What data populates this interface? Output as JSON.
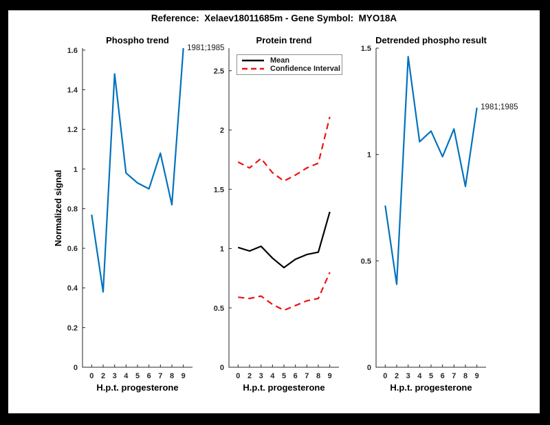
{
  "figure": {
    "title": "Reference:  Xelaev18011685m - Gene Symbol:  MYO18A"
  },
  "colors": {
    "blue": "#0072BD",
    "red": "#EE1111",
    "black": "#000000",
    "axis": "#262626",
    "background": "#000000",
    "canvas": "#FFFFFF"
  },
  "legend": {
    "position": "top-left",
    "items": [
      {
        "label": "Mean",
        "style": "solid",
        "color_key": "black"
      },
      {
        "label": "Confidence Interval",
        "style": "dashed",
        "color_key": "red"
      }
    ]
  },
  "chart_data": [
    {
      "type": "line",
      "title": "Phospho trend",
      "xlabel": "H.p.t. progesterone",
      "ylabel": "Normalized signal",
      "categories": [
        "0",
        "2",
        "3",
        "4",
        "5",
        "6",
        "7",
        "8",
        "9"
      ],
      "ylim": [
        0,
        1.61
      ],
      "ytick_values": [
        0,
        0.2,
        0.4,
        0.6,
        0.8,
        1,
        1.2,
        1.4,
        1.6
      ],
      "ytick_labels": [
        "0",
        "0.2",
        "0.4",
        "0.6",
        "0.8",
        "1",
        "1.2",
        "1.4",
        "1.6"
      ],
      "grid": false,
      "series": [
        {
          "name": "phospho-trend",
          "color_key": "blue",
          "style": "solid",
          "values": [
            0.77,
            0.38,
            1.48,
            0.98,
            0.93,
            0.9,
            1.08,
            0.82,
            1.61
          ]
        }
      ],
      "annotation": {
        "text": "1981;1985",
        "series": 0,
        "point": 8
      }
    },
    {
      "type": "line",
      "title": "Protein trend",
      "xlabel": "H.p.t. progesterone",
      "ylabel": "",
      "categories": [
        "0",
        "2",
        "3",
        "4",
        "5",
        "6",
        "7",
        "8",
        "9"
      ],
      "ylim": [
        0,
        2.69
      ],
      "ytick_values": [
        0,
        0.5,
        1,
        1.5,
        2,
        2.5
      ],
      "ytick_labels": [
        "0",
        "0.5",
        "1",
        "1.5",
        "2",
        "2.5"
      ],
      "grid": false,
      "series": [
        {
          "name": "confidence-upper",
          "color_key": "red",
          "style": "dashed",
          "values": [
            1.73,
            1.68,
            1.76,
            1.64,
            1.57,
            1.62,
            1.68,
            1.72,
            2.11
          ]
        },
        {
          "name": "mean",
          "color_key": "black",
          "style": "solid",
          "values": [
            1.01,
            0.98,
            1.02,
            0.92,
            0.84,
            0.91,
            0.95,
            0.97,
            1.31
          ]
        },
        {
          "name": "confidence-lower",
          "color_key": "red",
          "style": "dashed",
          "values": [
            0.59,
            0.58,
            0.6,
            0.53,
            0.48,
            0.52,
            0.56,
            0.58,
            0.8
          ]
        }
      ]
    },
    {
      "type": "line",
      "title": "Detrended phospho result",
      "xlabel": "H.p.t. progesterone",
      "ylabel": "",
      "categories": [
        "0",
        "2",
        "3",
        "4",
        "5",
        "6",
        "7",
        "8",
        "9"
      ],
      "ylim": [
        0,
        1.5
      ],
      "ytick_values": [
        0,
        0.5,
        1,
        1.5
      ],
      "ytick_labels": [
        "0",
        "0.5",
        "1",
        "1.5"
      ],
      "grid": false,
      "series": [
        {
          "name": "detrended-phospho",
          "color_key": "blue",
          "style": "solid",
          "values": [
            0.76,
            0.39,
            1.46,
            1.06,
            1.11,
            0.99,
            1.12,
            0.85,
            1.22
          ]
        }
      ],
      "annotation": {
        "text": "1981;1985",
        "series": 0,
        "point": 8
      }
    }
  ]
}
